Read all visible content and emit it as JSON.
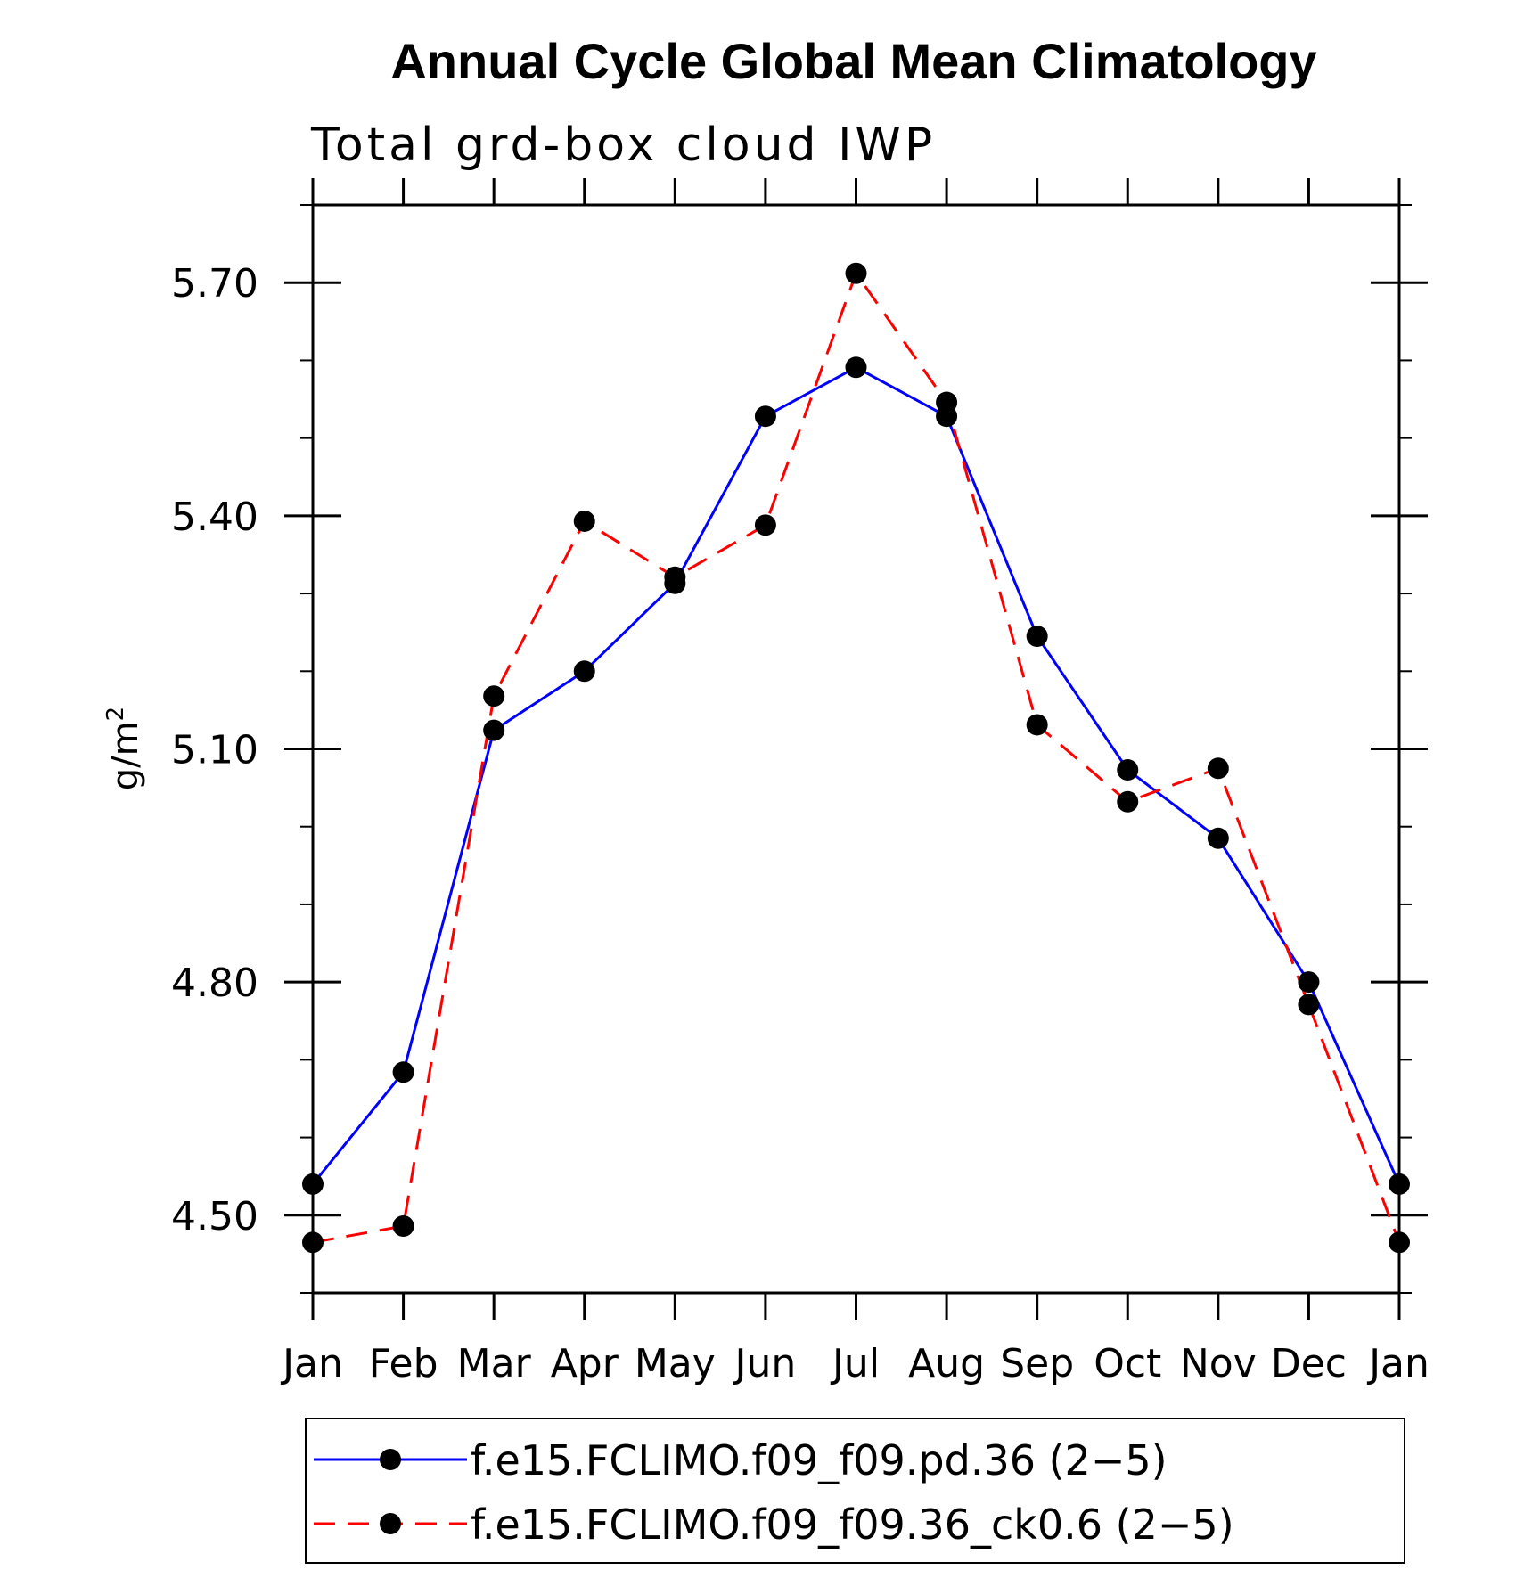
{
  "chart_data": {
    "type": "line",
    "title": "Annual Cycle Global Mean Climatology",
    "subtitle": "Total grd-box cloud IWP",
    "ylabel": "g/m",
    "ylabel_sup": "2",
    "xlabel": "",
    "categories": [
      "Jan",
      "Feb",
      "Mar",
      "Apr",
      "May",
      "Jun",
      "Jul",
      "Aug",
      "Sep",
      "Oct",
      "Nov",
      "Dec",
      "Jan"
    ],
    "ylim": [
      4.4,
      5.8
    ],
    "yticks_major": [
      4.5,
      4.8,
      5.1,
      5.4,
      5.7
    ],
    "ytick_labels": [
      "4.50",
      "4.80",
      "5.10",
      "5.40",
      "5.70"
    ],
    "yticks_minor_step": 0.1,
    "grid": false,
    "legend_position": "bottom",
    "series": [
      {
        "name": "f.e15.FCLIMO.f09_f09.pd.36 (2−5)",
        "color": "#0000ff",
        "dash": "solid",
        "marker": "filled-circle",
        "values": [
          4.54,
          4.684,
          5.124,
          5.2,
          5.313,
          5.528,
          5.591,
          5.528,
          5.245,
          5.073,
          4.985,
          4.8,
          4.54
        ]
      },
      {
        "name": "f.e15.FCLIMO.f09_f09.36_ck0.6 (2−5)",
        "color": "#ff0000",
        "dash": "dashed",
        "marker": "filled-circle",
        "values": [
          4.465,
          4.486,
          5.168,
          5.393,
          5.321,
          5.388,
          5.712,
          5.546,
          5.131,
          5.032,
          5.075,
          4.771,
          4.465
        ]
      }
    ]
  }
}
